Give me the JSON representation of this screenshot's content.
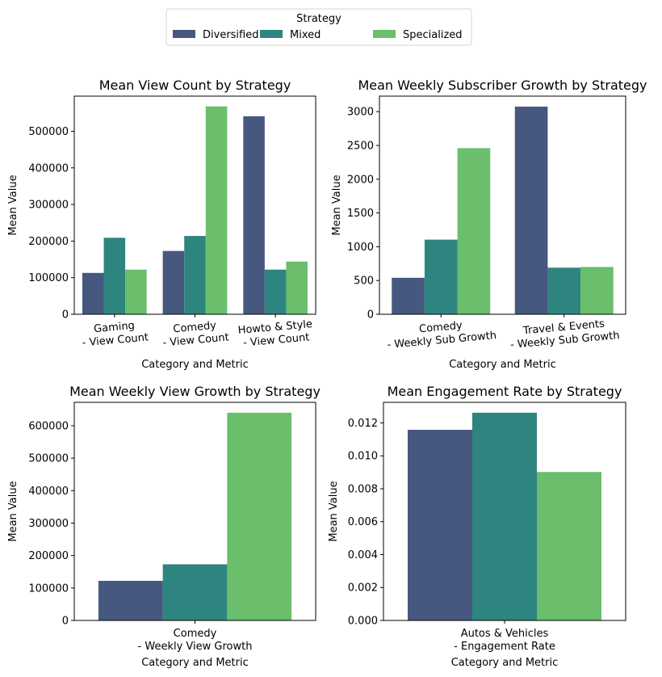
{
  "legend": {
    "title": "Strategy",
    "entries": [
      {
        "label": "Diversified",
        "color": "#46587f"
      },
      {
        "label": "Mixed",
        "color": "#2e8580"
      },
      {
        "label": "Specialized",
        "color": "#6abe6c"
      }
    ]
  },
  "chart_data": [
    {
      "type": "bar",
      "title": "Mean View Count by Strategy",
      "xlabel": "Category and Metric",
      "ylabel": "Mean Value",
      "categories": [
        [
          "Gaming",
          "- View Count"
        ],
        [
          "Comedy",
          "- View Count"
        ],
        [
          "Howto & Style",
          "- View Count"
        ]
      ],
      "series": [
        {
          "name": "Diversified",
          "values": [
            113000,
            173000,
            541000
          ]
        },
        {
          "name": "Mixed",
          "values": [
            209000,
            214000,
            122000
          ]
        },
        {
          "name": "Specialized",
          "values": [
            122000,
            568000,
            144000
          ]
        }
      ],
      "ylim": [
        0,
        596000
      ],
      "yticks": [
        0,
        100000,
        200000,
        300000,
        400000,
        500000
      ],
      "ytick_labels": [
        "0",
        "100000",
        "200000",
        "300000",
        "400000",
        "500000"
      ],
      "xtick_rotation": -5
    },
    {
      "type": "bar",
      "title": "Mean Weekly Subscriber Growth by Strategy",
      "xlabel": "Category and Metric",
      "ylabel": "Mean Value",
      "categories": [
        [
          "Comedy",
          "- Weekly Sub Growth"
        ],
        [
          "Travel & Events",
          "- Weekly Sub Growth"
        ]
      ],
      "series": [
        {
          "name": "Diversified",
          "values": [
            540,
            3075
          ]
        },
        {
          "name": "Mixed",
          "values": [
            1105,
            690
          ]
        },
        {
          "name": "Specialized",
          "values": [
            2460,
            700
          ]
        }
      ],
      "ylim": [
        0,
        3230
      ],
      "yticks": [
        0,
        500,
        1000,
        1500,
        2000,
        2500,
        3000
      ],
      "ytick_labels": [
        "0",
        "500",
        "1000",
        "1500",
        "2000",
        "2500",
        "3000"
      ],
      "xtick_rotation": -5
    },
    {
      "type": "bar",
      "title": "Mean Weekly View Growth by Strategy",
      "xlabel": "Category and Metric",
      "ylabel": "Mean Value",
      "categories": [
        [
          "Comedy",
          "- Weekly View Growth"
        ]
      ],
      "series": [
        {
          "name": "Diversified",
          "values": [
            122000
          ]
        },
        {
          "name": "Mixed",
          "values": [
            173000
          ]
        },
        {
          "name": "Specialized",
          "values": [
            640000
          ]
        }
      ],
      "ylim": [
        0,
        672000
      ],
      "yticks": [
        0,
        100000,
        200000,
        300000,
        400000,
        500000,
        600000
      ],
      "ytick_labels": [
        "0",
        "100000",
        "200000",
        "300000",
        "400000",
        "500000",
        "600000"
      ],
      "xtick_rotation": 0
    },
    {
      "type": "bar",
      "title": "Mean Engagement Rate by Strategy",
      "xlabel": "Category and Metric",
      "ylabel": "Mean Value",
      "categories": [
        [
          "Autos & Vehicles",
          "- Engagement Rate"
        ]
      ],
      "series": [
        {
          "name": "Diversified",
          "values": [
            0.01158
          ]
        },
        {
          "name": "Mixed",
          "values": [
            0.01262
          ]
        },
        {
          "name": "Specialized",
          "values": [
            0.00902
          ]
        }
      ],
      "ylim": [
        0,
        0.01325
      ],
      "yticks": [
        0,
        0.002,
        0.004,
        0.006,
        0.008,
        0.01,
        0.012
      ],
      "ytick_labels": [
        "0.000",
        "0.002",
        "0.004",
        "0.006",
        "0.008",
        "0.010",
        "0.012"
      ],
      "xtick_rotation": 0
    }
  ]
}
